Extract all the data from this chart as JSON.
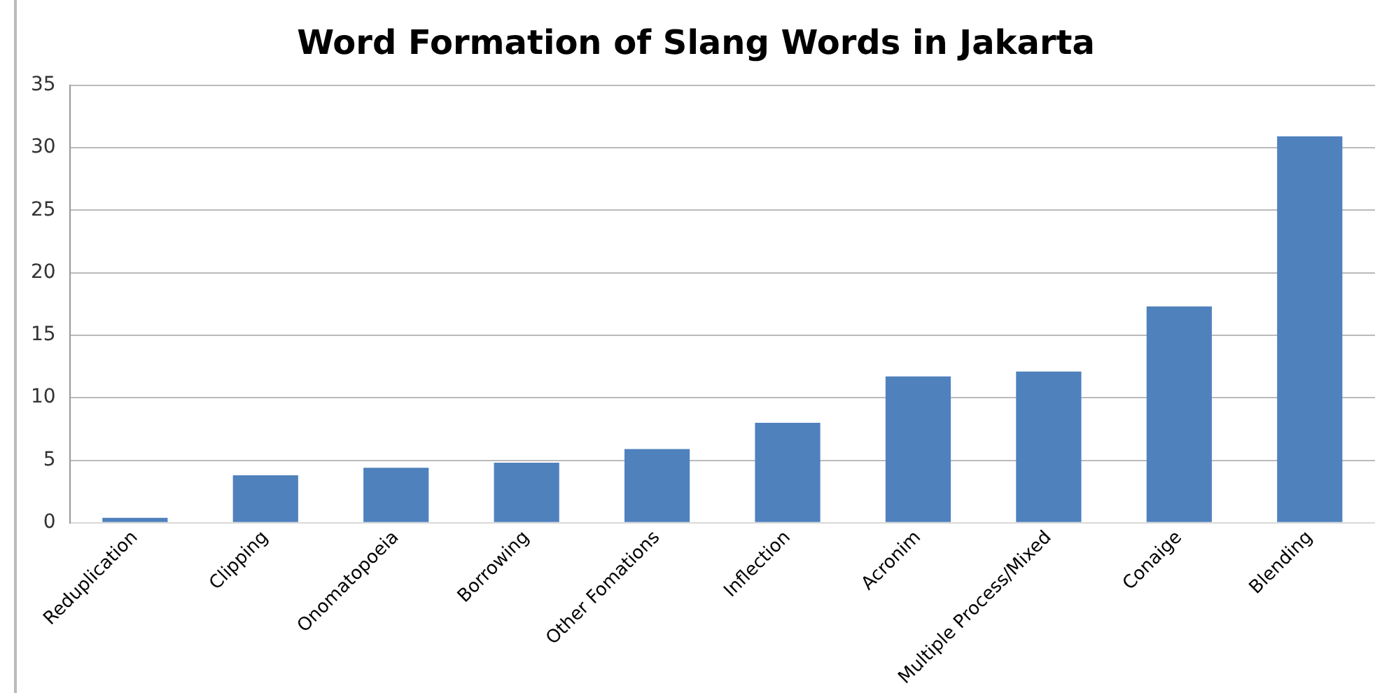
{
  "chart_data": {
    "type": "bar",
    "title": "Word Formation of Slang Words in Jakarta",
    "categories": [
      "Reduplication",
      "Clipping",
      "Onomatopoeia",
      "Borrowing",
      "Other Fomations",
      "Inflection",
      "Acronim",
      "Multiple Process/Mixed",
      "Conaige",
      "Blending"
    ],
    "values": [
      0.4,
      3.8,
      4.4,
      4.8,
      5.9,
      8.0,
      11.7,
      12.1,
      17.3,
      30.9
    ],
    "color": "#4f81bd",
    "ylim": [
      0,
      35
    ],
    "yticks": [
      0,
      5,
      10,
      15,
      20,
      25,
      30,
      35
    ],
    "grid": "y",
    "legend": false
  }
}
